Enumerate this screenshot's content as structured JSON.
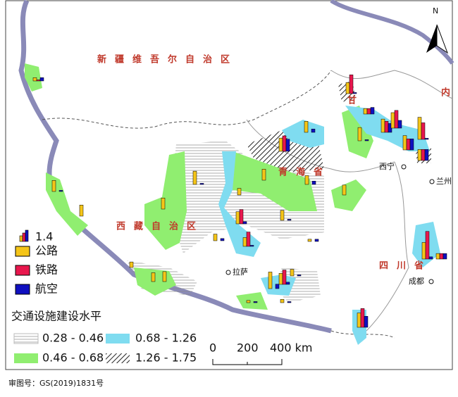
{
  "map": {
    "north": "N",
    "regions": [
      "新疆维吾尔自治区",
      "西藏自治区",
      "青海省",
      "四川省",
      "甘",
      "内"
    ],
    "cities": [
      "西宁",
      "兰州",
      "拉萨",
      "成都"
    ],
    "legend": {
      "bar_scale": "1.4",
      "road": "公路",
      "rail": "铁路",
      "air": "航空",
      "title": "交通设施建设水平",
      "classes": [
        "0.28 - 0.46",
        "0.68 - 1.26",
        "0.46 - 0.68",
        "1.26 - 1.75"
      ]
    },
    "scale_bar": [
      "0",
      "200",
      "400 km"
    ],
    "approval": "审图号：GS(2019)1831号",
    "bar_groups": [
      [
        0.3,
        0.1,
        0.3
      ],
      [
        1.0,
        0,
        0.1
      ],
      [
        1.0,
        0,
        0
      ],
      [
        1.0,
        0,
        0
      ],
      [
        1.2,
        0,
        0.1
      ],
      [
        0.6,
        0,
        0.2
      ],
      [
        0.6,
        0,
        0
      ],
      [
        1.0,
        0,
        0
      ],
      [
        1.1,
        1.3,
        0.2
      ],
      [
        0.8,
        1.3,
        0.1
      ],
      [
        0.9,
        0,
        0.1
      ],
      [
        0.2,
        0,
        0.2
      ],
      [
        0.8,
        0,
        0.3
      ],
      [
        0.9,
        0,
        0
      ],
      [
        1.2,
        1.4,
        1.1
      ],
      [
        1.0,
        0,
        0.3
      ],
      [
        1.0,
        1.7,
        0.1
      ],
      [
        1.2,
        0,
        0.1
      ],
      [
        0.5,
        0.5,
        0.6
      ],
      [
        1.2,
        1.0,
        0.8
      ],
      [
        1.4,
        1.6,
        0.7
      ],
      [
        1.3,
        1.0,
        1.0
      ],
      [
        2.0,
        1.5,
        0.1
      ],
      [
        1.0,
        1.0,
        1.0
      ],
      [
        1.5,
        0,
        0.4
      ],
      [
        1.0,
        1.3,
        0.2
      ],
      [
        0.6,
        0,
        0.1
      ],
      [
        0.2,
        0,
        0.1
      ],
      [
        0.3,
        0,
        0.1
      ],
      [
        0.8,
        0,
        0
      ],
      [
        0.9,
        0,
        0
      ],
      [
        1.5,
        2.5,
        0.2
      ],
      [
        0.5,
        0.5,
        0.5
      ],
      [
        1.3,
        1.7,
        1.0
      ],
      [
        0.5,
        0,
        0
      ]
    ]
  }
}
